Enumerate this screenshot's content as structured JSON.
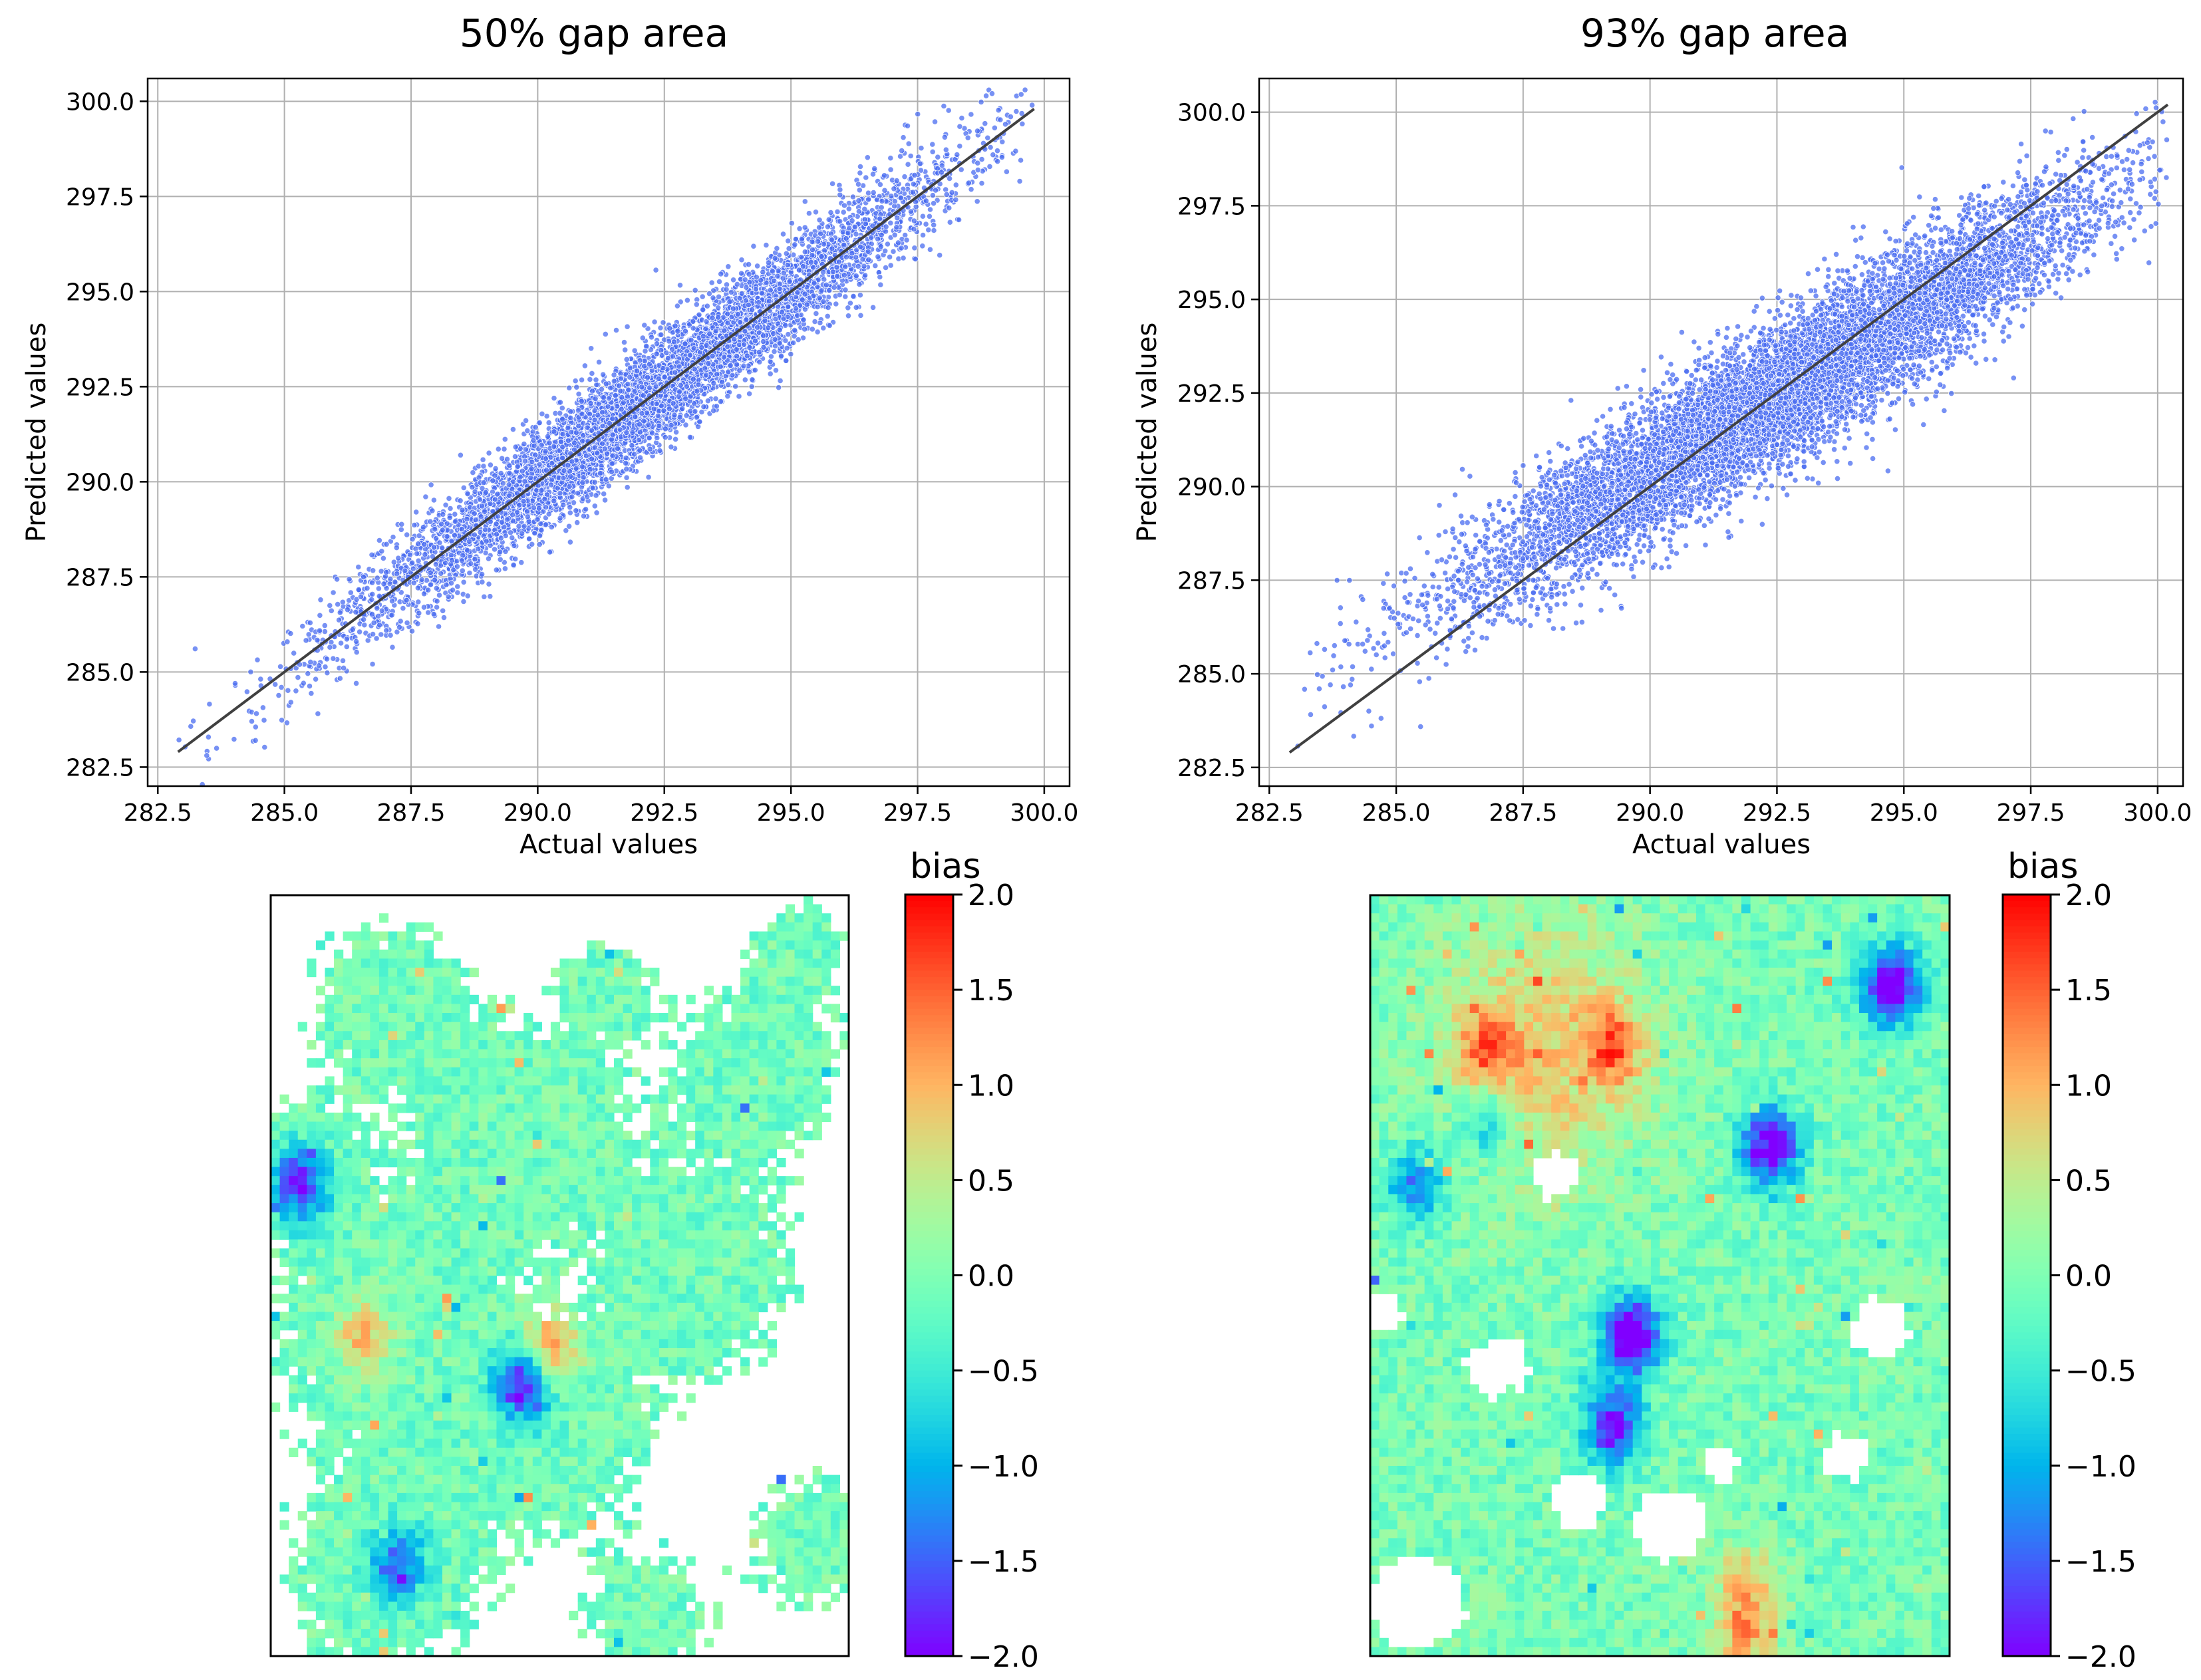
{
  "chart_data": [
    {
      "type": "scatter",
      "title": "50% gap area",
      "xlabel": "Actual values",
      "ylabel": "Predicted values",
      "xlim": [
        282.3,
        300.5
      ],
      "ylim": [
        282.0,
        300.6
      ],
      "xticks": [
        282.5,
        285.0,
        287.5,
        290.0,
        292.5,
        295.0,
        297.5,
        300.0
      ],
      "yticks": [
        282.5,
        285.0,
        287.5,
        290.0,
        292.5,
        295.0,
        297.5,
        300.0
      ],
      "xtick_labels": [
        "282.5",
        "285.0",
        "287.5",
        "290.0",
        "292.5",
        "295.0",
        "297.5",
        "300.0"
      ],
      "ytick_labels": [
        "282.5",
        "285.0",
        "287.5",
        "290.0",
        "292.5",
        "295.0",
        "297.5",
        "300.0"
      ],
      "grid": true,
      "point_color": "#4a6cf0",
      "identity_line": [
        [
          282.9,
          282.9
        ],
        [
          299.8,
          299.8
        ]
      ],
      "cloud": {
        "n": 6500,
        "x_mean": 292.2,
        "x_sd": 2.9,
        "x_min": 282.8,
        "x_max": 299.9,
        "residual_sd": 0.7,
        "slope": 1.0,
        "intercept": 0.0
      }
    },
    {
      "type": "scatter",
      "title": "93% gap area",
      "xlabel": "Actual values",
      "ylabel": "Predicted values",
      "xlim": [
        282.3,
        300.5
      ],
      "ylim": [
        282.0,
        300.9
      ],
      "xticks": [
        282.5,
        285.0,
        287.5,
        290.0,
        292.5,
        295.0,
        297.5,
        300.0
      ],
      "yticks": [
        282.5,
        285.0,
        287.5,
        290.0,
        292.5,
        295.0,
        297.5,
        300.0
      ],
      "xtick_labels": [
        "282.5",
        "285.0",
        "287.5",
        "290.0",
        "292.5",
        "295.0",
        "297.5",
        "300.0"
      ],
      "ytick_labels": [
        "282.5",
        "285.0",
        "287.5",
        "290.0",
        "292.5",
        "295.0",
        "297.5",
        "300.0"
      ],
      "grid": true,
      "point_color": "#4a6cf0",
      "identity_line": [
        [
          282.9,
          282.9
        ],
        [
          300.2,
          300.2
        ]
      ],
      "cloud": {
        "n": 9000,
        "x_mean": 292.5,
        "x_sd": 3.1,
        "x_min": 283.0,
        "x_max": 300.2,
        "residual_sd": 0.95,
        "slope": 0.82,
        "intercept": 52.6
      }
    },
    {
      "type": "heatmap",
      "colorbar_title": "bias",
      "colorbar_range": [
        -2.0,
        2.0
      ],
      "colorbar_ticks": [
        2.0,
        1.5,
        1.0,
        0.5,
        0.0,
        -0.5,
        -1.0,
        -1.5,
        -2.0
      ],
      "colorbar_tick_labels": [
        "2.0",
        "1.5",
        "1.0",
        "0.5",
        "0.0",
        "−0.5",
        "−1.0",
        "−1.5",
        "−2.0"
      ],
      "colormap": "rainbow",
      "grid_cols": 64,
      "grid_rows": 84,
      "gap_coverage": 0.45,
      "mean_bias": -0.1
    },
    {
      "type": "heatmap",
      "colorbar_title": "bias",
      "colorbar_range": [
        -2.0,
        2.0
      ],
      "colorbar_ticks": [
        2.0,
        1.5,
        1.0,
        0.5,
        0.0,
        -0.5,
        -1.0,
        -1.5,
        -2.0
      ],
      "colorbar_tick_labels": [
        "2.0",
        "1.5",
        "1.0",
        "0.5",
        "0.0",
        "−0.5",
        "−1.0",
        "−1.5",
        "−2.0"
      ],
      "colormap": "rainbow",
      "grid_cols": 64,
      "grid_rows": 84,
      "gap_coverage": 0.92,
      "mean_bias": 0.15
    }
  ]
}
